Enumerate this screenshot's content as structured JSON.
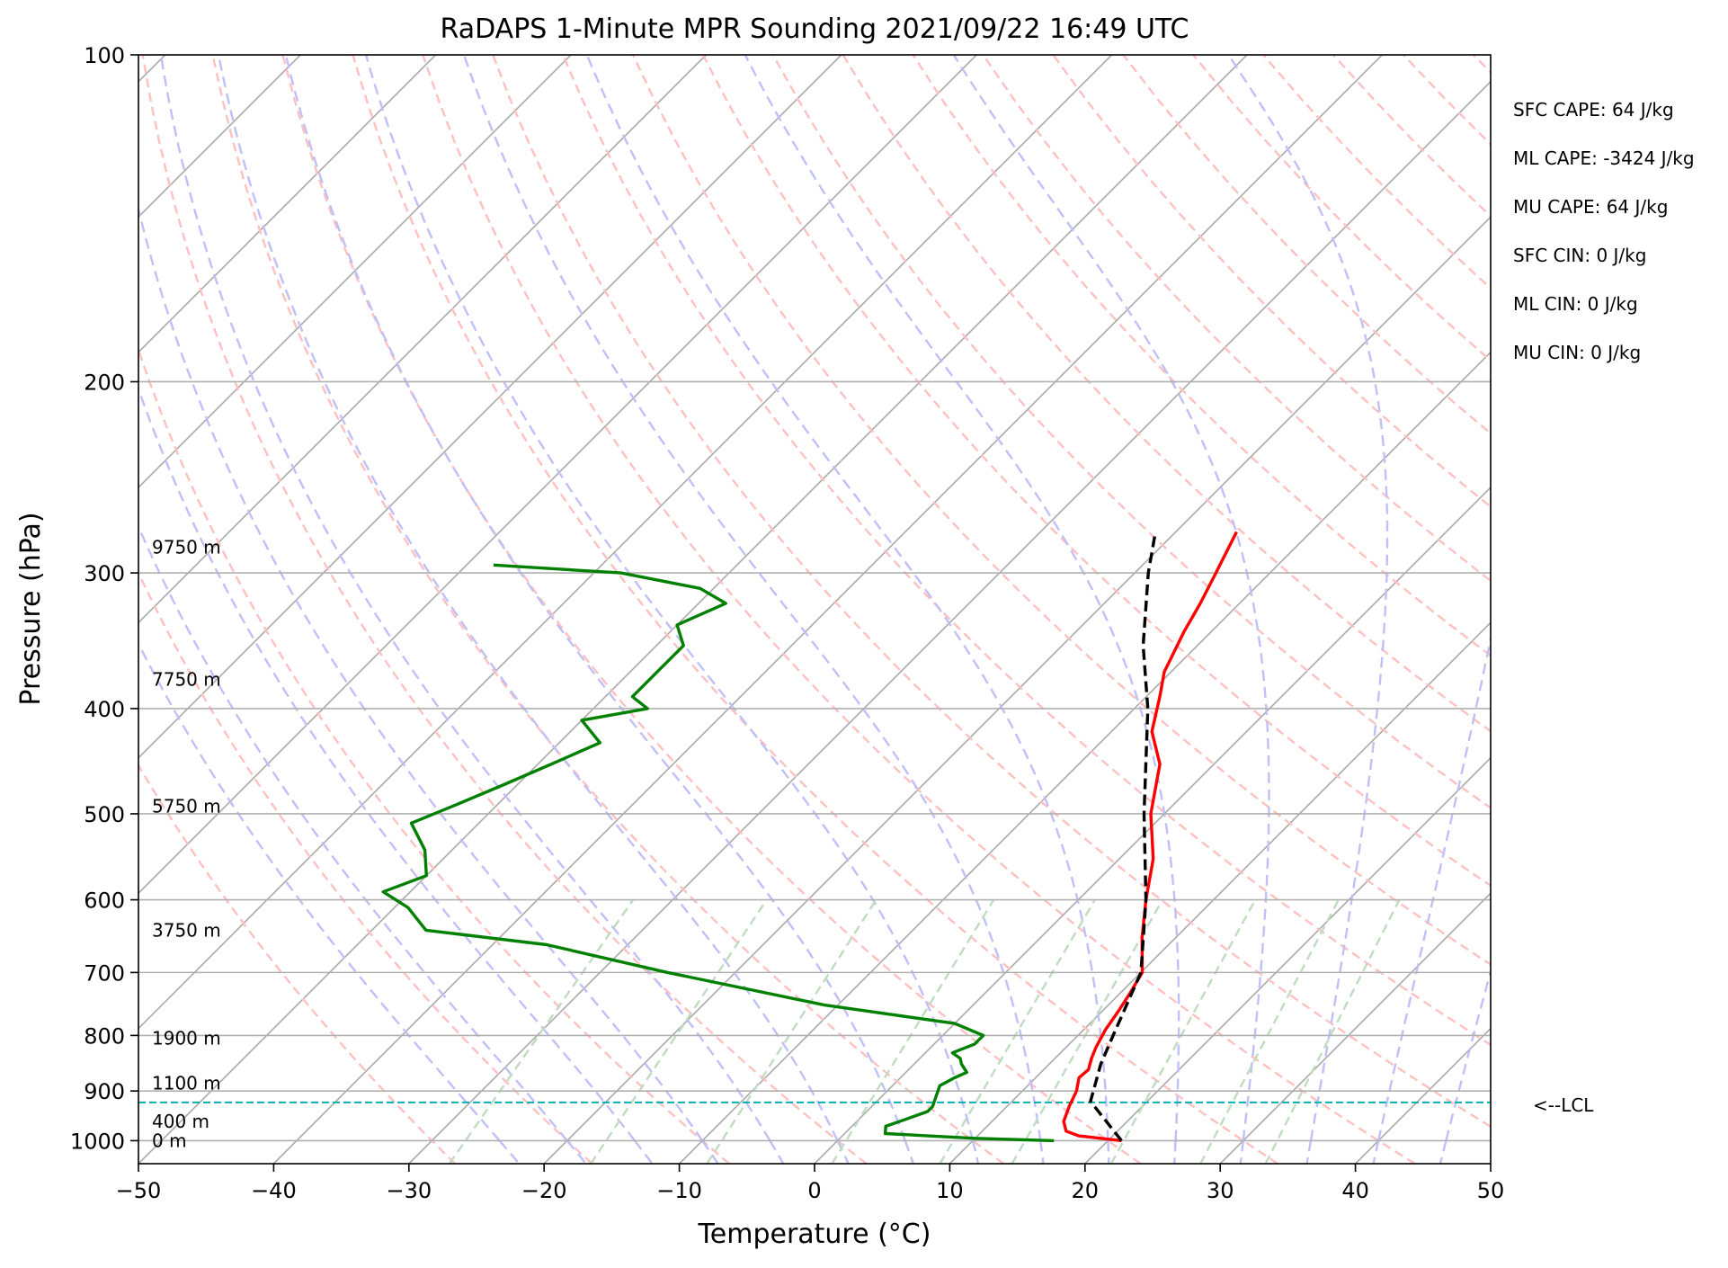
{
  "chart_data": {
    "type": "line",
    "title": "RaDAPS 1-Minute MPR Sounding 2021/09/22 16:49 UTC",
    "xlabel": "Temperature (°C)",
    "ylabel": "Pressure (hPa)",
    "xlim": [
      -50,
      50
    ],
    "ylim": [
      1050,
      100
    ],
    "y_scale": "log",
    "skew": "skew-T (isotherms slanted 45°)",
    "grid": true,
    "x_ticks": [
      "−50",
      "−40",
      "−30",
      "−20",
      "−10",
      "0",
      "10",
      "20",
      "30",
      "40",
      "50"
    ],
    "x_tick_values": [
      -50,
      -40,
      -30,
      -20,
      -10,
      0,
      10,
      20,
      30,
      40,
      50
    ],
    "y_ticks": [
      "100",
      "200",
      "300",
      "400",
      "500",
      "600",
      "700",
      "800",
      "900",
      "1000"
    ],
    "y_tick_values": [
      100,
      200,
      300,
      400,
      500,
      600,
      700,
      800,
      900,
      1000
    ],
    "series": [
      {
        "color": "#ff0000",
        "role": "temperature",
        "points": [
          [
            1000,
            21.0
          ],
          [
            990,
            17.5
          ],
          [
            980,
            16.2
          ],
          [
            960,
            15.3
          ],
          [
            930,
            14.6
          ],
          [
            900,
            14.0
          ],
          [
            875,
            13.2
          ],
          [
            860,
            13.3
          ],
          [
            840,
            12.7
          ],
          [
            820,
            12.2
          ],
          [
            790,
            11.6
          ],
          [
            760,
            11.2
          ],
          [
            730,
            10.7
          ],
          [
            700,
            10.1
          ],
          [
            650,
            7.5
          ],
          [
            600,
            5.0
          ],
          [
            550,
            2.5
          ],
          [
            500,
            -1.0
          ],
          [
            450,
            -4.0
          ],
          [
            420,
            -7.0
          ],
          [
            390,
            -9.0
          ],
          [
            370,
            -10.5
          ],
          [
            340,
            -12.0
          ],
          [
            320,
            -12.9
          ],
          [
            300,
            -14.0
          ],
          [
            275,
            -15.5
          ]
        ]
      },
      {
        "color": "#008000",
        "role": "dewpoint",
        "points": [
          [
            1000,
            16.0
          ],
          [
            995,
            10.0
          ],
          [
            985,
            3.0
          ],
          [
            970,
            2.5
          ],
          [
            955,
            3.5
          ],
          [
            940,
            4.5
          ],
          [
            930,
            4.5
          ],
          [
            910,
            4.0
          ],
          [
            890,
            3.5
          ],
          [
            875,
            4.0
          ],
          [
            865,
            4.5
          ],
          [
            850,
            3.5
          ],
          [
            840,
            3.0
          ],
          [
            830,
            2.0
          ],
          [
            815,
            3.0
          ],
          [
            800,
            3.0
          ],
          [
            780,
            0.0
          ],
          [
            750,
            -11.0
          ],
          [
            700,
            -25.0
          ],
          [
            660,
            -36.0
          ],
          [
            640,
            -46.0
          ],
          [
            610,
            -49.0
          ],
          [
            590,
            -52.0
          ],
          [
            570,
            -50.0
          ],
          [
            540,
            -52.0
          ],
          [
            510,
            -55.0
          ],
          [
            490,
            -53.0
          ],
          [
            470,
            -51.0
          ],
          [
            450,
            -49.0
          ],
          [
            430,
            -47.0
          ],
          [
            410,
            -50.0
          ],
          [
            400,
            -46.0
          ],
          [
            390,
            -48.0
          ],
          [
            370,
            -48.0
          ],
          [
            350,
            -48.0
          ],
          [
            335,
            -50.0
          ],
          [
            320,
            -48.0
          ],
          [
            310,
            -51.0
          ],
          [
            300,
            -58.0
          ],
          [
            295,
            -68.0
          ]
        ]
      },
      {
        "color": "#000000",
        "role": "parcel",
        "dashed": true,
        "points": [
          [
            1000,
            21.0
          ],
          [
            920,
            15.8
          ],
          [
            850,
            13.8
          ],
          [
            800,
            12.6
          ],
          [
            700,
            10.0
          ],
          [
            600,
            5.0
          ],
          [
            500,
            -1.5
          ],
          [
            400,
            -9.0
          ],
          [
            350,
            -14.0
          ],
          [
            300,
            -19.0
          ],
          [
            275,
            -21.5
          ]
        ]
      }
    ],
    "height_labels": [
      {
        "text": "0 m",
        "p": 1000
      },
      {
        "text": "400 m",
        "p": 960
      },
      {
        "text": "1100 m",
        "p": 885
      },
      {
        "text": "1900 m",
        "p": 805
      },
      {
        "text": "3750 m",
        "p": 640
      },
      {
        "text": "5750 m",
        "p": 492
      },
      {
        "text": "7750 m",
        "p": 376
      },
      {
        "text": "9750 m",
        "p": 284
      }
    ],
    "lcl": {
      "p": 922,
      "label": "<--LCL",
      "color": "#00b0b0"
    },
    "indices": [
      "SFC CAPE: 64 J/kg",
      "ML CAPE: -3424 J/kg",
      "MU CAPE: 64 J/kg",
      "SFC CIN: 0 J/kg",
      "ML CIN: 0 J/kg",
      "MU CIN: 0 J/kg"
    ],
    "background_lines": {
      "isotherm_color": "#aaaaaa",
      "dry_adiabat_color": "#ffc0c0",
      "moist_adiabat_color": "#c0c0f8",
      "mixing_ratio_color": "#c0dcc0"
    }
  }
}
